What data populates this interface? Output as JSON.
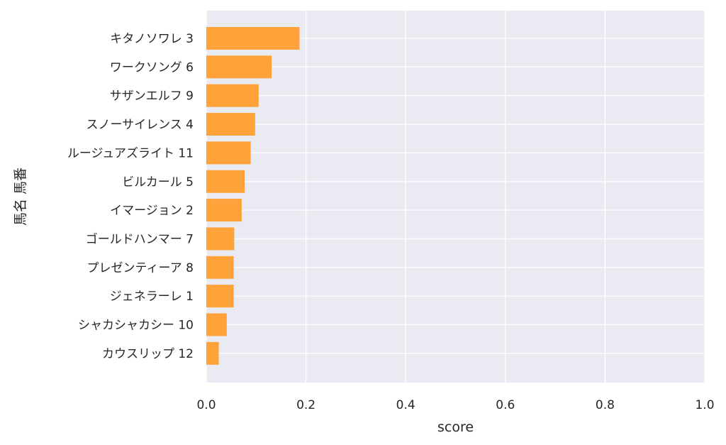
{
  "chart_data": {
    "type": "bar",
    "orientation": "horizontal",
    "xlabel": "score",
    "ylabel": "馬名 馬番",
    "xlim": [
      0.0,
      1.0
    ],
    "xticks": [
      "0.0",
      "0.2",
      "0.4",
      "0.6",
      "0.8",
      "1.0"
    ],
    "grid": true,
    "bar_color": "#FF9E2E",
    "background_color": "#EAEAF2",
    "categories": [
      "キタノソワレ 3",
      "ワークソング 6",
      "サザンエルフ 9",
      "スノーサイレンス 4",
      "ルージュアズライト 11",
      "ビルカール 5",
      "イマージョン 2",
      "ゴールドハンマー 7",
      "プレゼンティーア 8",
      "ジェネラーレ 1",
      "シャカシャカシー 10",
      "カウスリップ 12"
    ],
    "values": [
      0.187,
      0.131,
      0.105,
      0.098,
      0.089,
      0.077,
      0.071,
      0.056,
      0.055,
      0.055,
      0.041,
      0.025
    ]
  }
}
